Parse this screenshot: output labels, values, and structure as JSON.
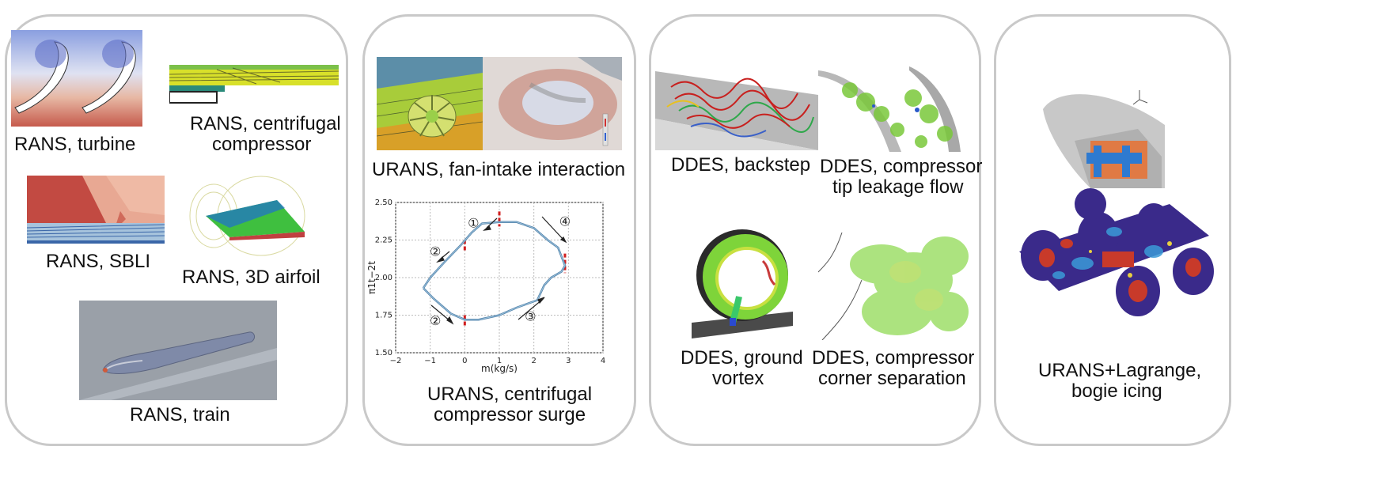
{
  "panels": {
    "rans": {
      "turbine": "RANS, turbine",
      "centrifugal_1": "RANS, centrifugal",
      "centrifugal_2": "compressor",
      "sbli": "RANS, SBLI",
      "airfoil": "RANS, 3D airfoil",
      "train": "RANS, train"
    },
    "urans": {
      "fan_intake": "URANS, fan-intake interaction",
      "surge_1": "URANS, centrifugal",
      "surge_2": "compressor surge"
    },
    "ddes": {
      "backstep": "DDES, backstep",
      "tip_1": "DDES, compressor",
      "tip_2": "tip leakage flow",
      "vortex_1": "DDES, ground",
      "vortex_2": "vortex",
      "corner_1": "DDES, compressor",
      "corner_2": "corner separation"
    },
    "lagrange": {
      "line_1": "URANS+Lagrange,",
      "line_2": "bogie icing"
    }
  },
  "chart_data": {
    "type": "line",
    "xlabel": "m(kg/s)",
    "ylabel": "π1t−2t",
    "xlim": [
      -2,
      4
    ],
    "ylim": [
      1.5,
      2.5
    ],
    "x_ticks": [
      "−2",
      "−1",
      "0",
      "1",
      "2",
      "3",
      "4"
    ],
    "y_ticks": [
      "1.50",
      "1.75",
      "2.00",
      "2.25",
      "2.50"
    ],
    "grid": true,
    "markers": [
      {
        "label": "①",
        "x": 0.25,
        "y": 2.36
      },
      {
        "label": "②",
        "x": -0.85,
        "y": 2.17
      },
      {
        "label": "②",
        "x": -0.85,
        "y": 1.71
      },
      {
        "label": "③",
        "x": 1.9,
        "y": 1.74
      },
      {
        "label": "④",
        "x": 2.9,
        "y": 2.37
      }
    ],
    "red_lines_x": [
      0,
      1,
      2.9
    ],
    "series": [
      {
        "x": [
          -1.2,
          -1.0,
          -0.6,
          -0.1,
          0.2,
          0.5,
          1.0,
          1.5,
          2.0,
          2.4,
          2.7,
          2.9,
          2.8,
          2.5,
          2.3,
          2.1,
          1.5,
          1.0,
          0.4,
          0.0,
          -0.4,
          -0.9,
          -1.2
        ],
        "y": [
          1.93,
          2.0,
          2.1,
          2.22,
          2.3,
          2.36,
          2.37,
          2.37,
          2.33,
          2.25,
          2.2,
          2.08,
          2.04,
          2.0,
          1.95,
          1.85,
          1.8,
          1.75,
          1.72,
          1.72,
          1.76,
          1.86,
          1.93
        ]
      }
    ]
  }
}
